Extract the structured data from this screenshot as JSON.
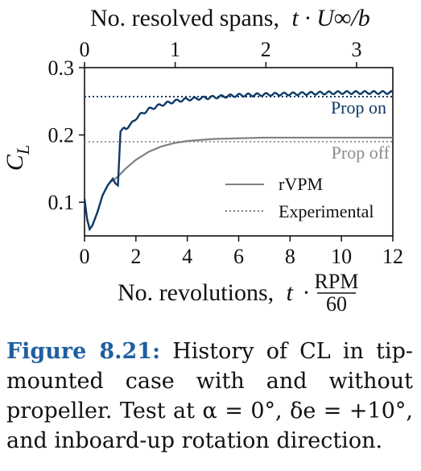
{
  "chart_data": {
    "type": "line",
    "xlabel": "No. revolutions, t · RPM/60",
    "xlabel_main": "No. revolutions,",
    "xlabel_var": "t",
    "xlabel_frac_num": "RPM",
    "xlabel_frac_den": "60",
    "x2label": "No. resolved spans, t · U∞/b",
    "x2label_main": "No. resolved spans,",
    "x2label_expr": "t · U∞/b",
    "ylabel": "CL",
    "ylabel_main": "C",
    "ylabel_sub": "L",
    "xlim": [
      0,
      12
    ],
    "ylim": [
      0.05,
      0.3
    ],
    "x2lim": [
      0,
      3.4
    ],
    "x_ticks": [
      "0",
      "2",
      "4",
      "6",
      "8",
      "10",
      "12"
    ],
    "y_ticks": [
      "0.1",
      "0.2",
      "0.3"
    ],
    "x2_ticks": [
      "0",
      "1",
      "2",
      "3"
    ],
    "grid": false,
    "legend_position": "right",
    "legend": [
      {
        "label": "rVPM",
        "style": "solid"
      },
      {
        "label": "Experimental",
        "style": "dotted"
      }
    ],
    "annotations": [
      {
        "text": "Prop on",
        "color": "#0d3a66"
      },
      {
        "text": "Prop off",
        "color": "#8c8c8c"
      }
    ],
    "colors": {
      "prop_on": "#0d3a66",
      "prop_off": "#808080"
    },
    "series": [
      {
        "name": "Prop on",
        "style": "solid",
        "x": [
          0,
          0.1,
          0.2,
          0.3,
          0.5,
          0.7,
          0.9,
          1.0,
          1.1,
          1.2,
          1.3,
          1.4,
          1.5,
          1.6,
          1.8,
          2.0,
          2.25,
          2.5,
          3.0,
          3.5,
          4.0,
          5.0,
          6.0,
          7.0,
          8.0,
          9.0,
          10.0,
          11.0,
          12.0
        ],
        "y": [
          0.105,
          0.075,
          0.06,
          0.065,
          0.085,
          0.11,
          0.125,
          0.13,
          0.135,
          0.128,
          0.125,
          0.205,
          0.21,
          0.21,
          0.215,
          0.225,
          0.232,
          0.238,
          0.245,
          0.25,
          0.253,
          0.256,
          0.259,
          0.26,
          0.261,
          0.262,
          0.263,
          0.263,
          0.263
        ]
      },
      {
        "name": "Prop off",
        "style": "solid",
        "x": [
          0,
          0.1,
          0.2,
          0.3,
          0.5,
          0.7,
          0.9,
          1.0,
          1.2,
          1.4,
          1.6,
          2.0,
          2.5,
          3.0,
          3.5,
          4.0,
          5.0,
          6.0,
          7.0,
          8.0,
          9.0,
          10.0,
          11.0,
          12.0
        ],
        "y": [
          0.105,
          0.075,
          0.06,
          0.065,
          0.085,
          0.11,
          0.125,
          0.13,
          0.135,
          0.142,
          0.15,
          0.163,
          0.175,
          0.183,
          0.188,
          0.191,
          0.194,
          0.195,
          0.196,
          0.196,
          0.196,
          0.196,
          0.196,
          0.196
        ]
      },
      {
        "name": "Experimental prop on",
        "style": "dotted",
        "y_const": 0.257
      },
      {
        "name": "Experimental prop off",
        "style": "dotted",
        "y_const": 0.19
      }
    ]
  },
  "caption": {
    "label": "Figure 8.21:",
    "text": "History of CL in tip-mounted case with and without propeller. Test at α = 0°, δe = +10°, and inboard-up rotation direction."
  }
}
